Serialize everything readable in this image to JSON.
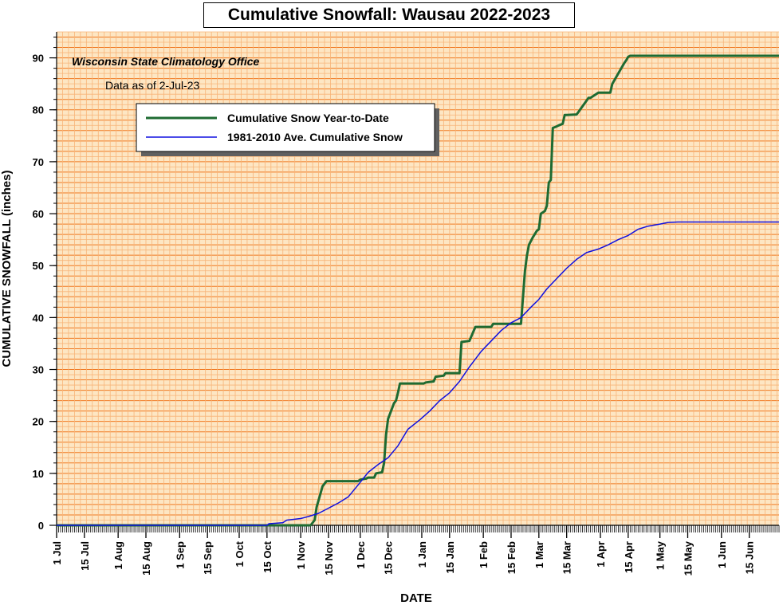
{
  "chart_data": {
    "type": "line",
    "title": "Cumulative Snowfall: Wausau 2022-2023",
    "subtitle": "Wisconsin State Climatology Office",
    "note": "Data as of 2-Jul-23",
    "xlabel": "DATE",
    "ylabel": "CUMULATIVE SNOWFALL (inches)",
    "ylim": [
      0,
      95
    ],
    "yticks": [
      0,
      10,
      20,
      30,
      40,
      50,
      60,
      70,
      80,
      90
    ],
    "xlim": [
      "2022-07-01",
      "2023-06-30"
    ],
    "xtick_labels": [
      "1 Jul",
      "15 Jul",
      "1 Aug",
      "15 Aug",
      "1 Sep",
      "15 Sep",
      "1 Oct",
      "15 Oct",
      "1 Nov",
      "15 Nov",
      "1 Dec",
      "15 Dec",
      "1 Jan",
      "15 Jan",
      "1 Feb",
      "15 Feb",
      "1 Mar",
      "15 Mar",
      "1 Apr",
      "15 Apr",
      "1 May",
      "15 May",
      "1 Jun",
      "15 Jun"
    ],
    "xtick_dates": [
      "2022-07-01",
      "2022-07-15",
      "2022-08-01",
      "2022-08-15",
      "2022-09-01",
      "2022-09-15",
      "2022-10-01",
      "2022-10-15",
      "2022-11-01",
      "2022-11-15",
      "2022-12-01",
      "2022-12-15",
      "2023-01-01",
      "2023-01-15",
      "2023-02-01",
      "2023-02-15",
      "2023-03-01",
      "2023-03-15",
      "2023-04-01",
      "2023-04-15",
      "2023-05-01",
      "2023-05-15",
      "2023-06-01",
      "2023-06-15"
    ],
    "grid": true,
    "legend_position": "upper-left",
    "colors": {
      "background": "#fde6c3",
      "grid_major": "#f07820",
      "grid_minor": "#f8b478"
    },
    "series": [
      {
        "name": "Cumulative Snow Year-to-Date",
        "color": "#1e6b32",
        "x": [
          "2022-07-01",
          "2022-11-06",
          "2022-11-08",
          "2022-11-09",
          "2022-11-12",
          "2022-11-14",
          "2022-11-30",
          "2022-12-01",
          "2022-12-04",
          "2022-12-05",
          "2022-12-08",
          "2022-12-09",
          "2022-12-12",
          "2022-12-13",
          "2022-12-14",
          "2022-12-15",
          "2022-12-16",
          "2022-12-18",
          "2022-12-19",
          "2022-12-20",
          "2022-12-21",
          "2022-12-23",
          "2022-12-25",
          "2023-01-02",
          "2023-01-03",
          "2023-01-07",
          "2023-01-08",
          "2023-01-12",
          "2023-01-13",
          "2023-01-20",
          "2023-01-21",
          "2023-01-25",
          "2023-01-26",
          "2023-01-28",
          "2023-02-05",
          "2023-02-06",
          "2023-02-20",
          "2023-02-22",
          "2023-02-23",
          "2023-02-24",
          "2023-02-26",
          "2023-02-28",
          "2023-03-01",
          "2023-03-02",
          "2023-03-04",
          "2023-03-05",
          "2023-03-06",
          "2023-03-07",
          "2023-03-08",
          "2023-03-10",
          "2023-03-11",
          "2023-03-13",
          "2023-03-14",
          "2023-03-15",
          "2023-03-20",
          "2023-03-21",
          "2023-03-26",
          "2023-03-27",
          "2023-03-31",
          "2023-04-01",
          "2023-04-06",
          "2023-04-07",
          "2023-04-13",
          "2023-04-14",
          "2023-04-15",
          "2023-04-16",
          "2023-04-18",
          "2023-06-30"
        ],
        "y": [
          0,
          0,
          1.0,
          3.5,
          7.5,
          8.5,
          8.5,
          8.8,
          9.0,
          9.2,
          9.2,
          10.0,
          10.2,
          12.0,
          17.5,
          20.5,
          21.5,
          23.5,
          24.0,
          25.5,
          27.3,
          27.3,
          27.3,
          27.3,
          27.5,
          27.7,
          28.6,
          28.8,
          29.3,
          29.3,
          35.3,
          35.5,
          36.4,
          38.2,
          38.2,
          38.8,
          38.8,
          49.0,
          52.0,
          54.0,
          55.5,
          56.7,
          57.0,
          60.0,
          60.5,
          61.5,
          66.0,
          66.5,
          76.5,
          76.8,
          77.0,
          77.3,
          79.0,
          79.0,
          79.1,
          79.6,
          82.3,
          82.3,
          83.3,
          83.3,
          83.3,
          85.0,
          89.0,
          89.5,
          90.2,
          90.4,
          90.4,
          90.4
        ]
      },
      {
        "name": "1981-2010 Ave. Cumulative Snow",
        "color": "#1010e0",
        "x": [
          "2022-07-01",
          "2022-10-15",
          "2022-10-16",
          "2022-10-23",
          "2022-10-25",
          "2022-11-01",
          "2022-11-05",
          "2022-11-10",
          "2022-11-15",
          "2022-11-20",
          "2022-11-25",
          "2022-11-30",
          "2022-12-05",
          "2022-12-10",
          "2022-12-15",
          "2022-12-20",
          "2022-12-25",
          "2022-12-31",
          "2023-01-05",
          "2023-01-10",
          "2023-01-15",
          "2023-01-20",
          "2023-01-25",
          "2023-01-31",
          "2023-02-05",
          "2023-02-10",
          "2023-02-15",
          "2023-02-20",
          "2023-02-25",
          "2023-03-01",
          "2023-03-05",
          "2023-03-10",
          "2023-03-15",
          "2023-03-20",
          "2023-03-25",
          "2023-03-31",
          "2023-04-05",
          "2023-04-10",
          "2023-04-15",
          "2023-04-20",
          "2023-04-25",
          "2023-05-01",
          "2023-05-05",
          "2023-05-10",
          "2023-05-15",
          "2023-06-30"
        ],
        "y": [
          0,
          0,
          0.3,
          0.5,
          1.0,
          1.3,
          1.7,
          2.3,
          3.3,
          4.3,
          5.5,
          7.8,
          10.2,
          11.7,
          13.0,
          15.3,
          18.5,
          20.3,
          22.0,
          24.0,
          25.5,
          27.7,
          30.5,
          33.5,
          35.5,
          37.5,
          39.0,
          40.0,
          42.0,
          43.5,
          45.5,
          47.5,
          49.5,
          51.2,
          52.5,
          53.2,
          54.0,
          55.0,
          55.8,
          57.0,
          57.6,
          58.0,
          58.3,
          58.4,
          58.4,
          58.4
        ]
      }
    ]
  }
}
